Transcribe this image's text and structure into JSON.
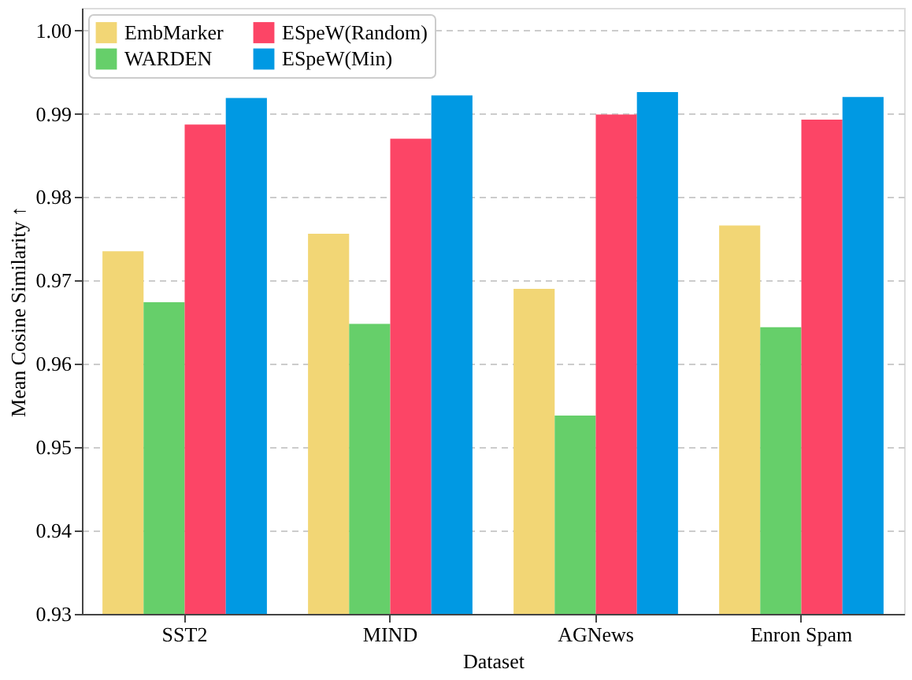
{
  "chart_data": {
    "type": "bar",
    "xlabel": "Dataset",
    "ylabel": "Mean Cosine Similarity ↑",
    "categories": [
      "SST2",
      "MIND",
      "AGNews",
      "Enron Spam"
    ],
    "series": [
      {
        "name": "EmbMarker",
        "color": "#f2d675",
        "values": [
          0.9735,
          0.9756,
          0.969,
          0.9766
        ]
      },
      {
        "name": "WARDEN",
        "color": "#66cf6a",
        "values": [
          0.9674,
          0.9648,
          0.9538,
          0.9644
        ]
      },
      {
        "name": "ESpeW(Random)",
        "color": "#fc4566",
        "values": [
          0.9887,
          0.987,
          0.9899,
          0.9893
        ]
      },
      {
        "name": "ESpeW(Min)",
        "color": "#0099e3",
        "values": [
          0.9919,
          0.9922,
          0.9926,
          0.992
        ]
      }
    ],
    "ylim": [
      0.93,
      1.0027
    ],
    "yticks": [
      {
        "value": 0.93,
        "label": "0.93"
      },
      {
        "value": 0.94,
        "label": "0.94"
      },
      {
        "value": 0.95,
        "label": "0.95"
      },
      {
        "value": 0.96,
        "label": "0.96"
      },
      {
        "value": 0.97,
        "label": "0.97"
      },
      {
        "value": 0.98,
        "label": "0.98"
      },
      {
        "value": 0.99,
        "label": "0.99"
      },
      {
        "value": 1.0,
        "label": "1.00"
      }
    ],
    "grid": "y",
    "legend": "top left"
  }
}
